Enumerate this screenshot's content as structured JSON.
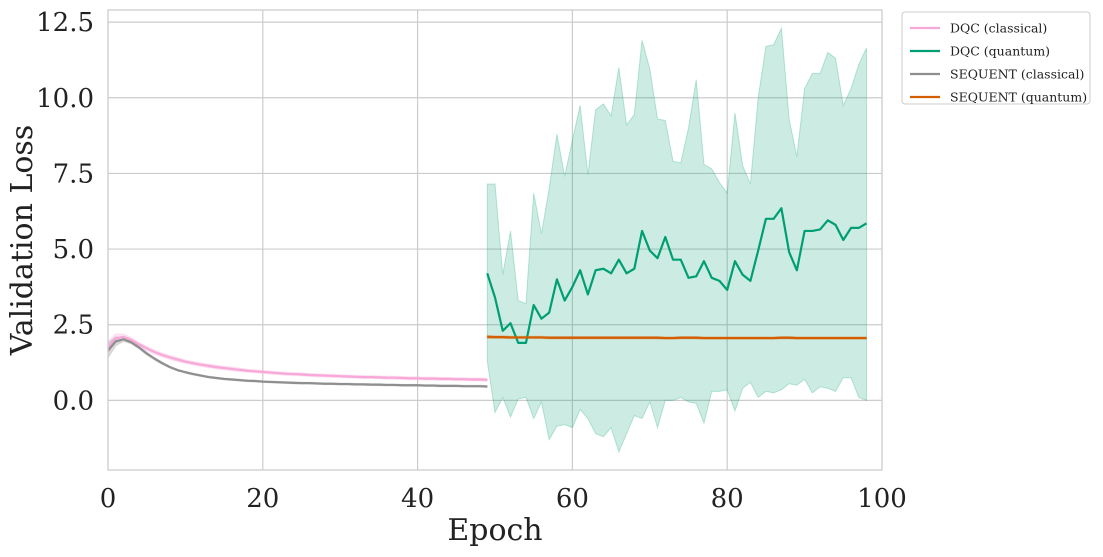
{
  "chart_data": {
    "type": "line",
    "xlabel": "Epoch",
    "ylabel": "Validation Loss",
    "xlim": [
      0,
      100
    ],
    "ylim": [
      -2.3,
      12.9
    ],
    "x_ticks": [
      0,
      20,
      40,
      60,
      80,
      100
    ],
    "x_tick_labels": [
      "0",
      "20",
      "40",
      "60",
      "80",
      "100"
    ],
    "y_ticks": [
      0.0,
      2.5,
      5.0,
      7.5,
      10.0,
      12.5
    ],
    "y_tick_labels": [
      "0.0",
      "2.5",
      "5.0",
      "7.5",
      "10.0",
      "12.5"
    ],
    "grid": true,
    "legend_position": "outside-top-right",
    "series": [
      {
        "name": "DQC (classical)",
        "color": "#f7a8d8",
        "x": [
          0,
          1,
          2,
          3,
          4,
          5,
          6,
          7,
          8,
          9,
          10,
          11,
          12,
          13,
          14,
          15,
          16,
          17,
          18,
          19,
          20,
          21,
          22,
          23,
          24,
          25,
          26,
          27,
          28,
          29,
          30,
          31,
          32,
          33,
          34,
          35,
          36,
          37,
          38,
          39,
          40,
          41,
          42,
          43,
          44,
          45,
          46,
          47,
          48,
          49
        ],
        "y": [
          1.75,
          2.05,
          2.1,
          2.0,
          1.85,
          1.72,
          1.6,
          1.5,
          1.42,
          1.35,
          1.28,
          1.23,
          1.18,
          1.14,
          1.1,
          1.07,
          1.04,
          1.01,
          0.98,
          0.96,
          0.94,
          0.92,
          0.9,
          0.88,
          0.87,
          0.86,
          0.84,
          0.83,
          0.82,
          0.81,
          0.8,
          0.79,
          0.78,
          0.77,
          0.77,
          0.76,
          0.75,
          0.75,
          0.74,
          0.73,
          0.73,
          0.72,
          0.72,
          0.71,
          0.71,
          0.7,
          0.7,
          0.69,
          0.69,
          0.68
        ],
        "band_lower": [
          1.55,
          1.9,
          2.0,
          1.92,
          1.78,
          1.65,
          1.53,
          1.43,
          1.35,
          1.28,
          1.22,
          1.17,
          1.12,
          1.08,
          1.04,
          1.01,
          0.98,
          0.95,
          0.93,
          0.91,
          0.89,
          0.87,
          0.85,
          0.83,
          0.82,
          0.81,
          0.79,
          0.78,
          0.77,
          0.76,
          0.75,
          0.74,
          0.73,
          0.72,
          0.72,
          0.71,
          0.7,
          0.7,
          0.69,
          0.68,
          0.68,
          0.67,
          0.67,
          0.66,
          0.66,
          0.65,
          0.65,
          0.64,
          0.64,
          0.63
        ],
        "band_upper": [
          1.95,
          2.2,
          2.2,
          2.08,
          1.92,
          1.79,
          1.67,
          1.57,
          1.49,
          1.42,
          1.34,
          1.29,
          1.24,
          1.2,
          1.16,
          1.13,
          1.1,
          1.07,
          1.03,
          1.01,
          0.99,
          0.97,
          0.95,
          0.93,
          0.92,
          0.91,
          0.89,
          0.88,
          0.87,
          0.86,
          0.85,
          0.84,
          0.83,
          0.82,
          0.82,
          0.81,
          0.8,
          0.8,
          0.79,
          0.78,
          0.78,
          0.77,
          0.77,
          0.76,
          0.76,
          0.75,
          0.75,
          0.74,
          0.74,
          0.73
        ]
      },
      {
        "name": "DQC (quantum)",
        "color": "#009e73",
        "x": [
          49,
          50,
          51,
          52,
          53,
          54,
          55,
          56,
          57,
          58,
          59,
          60,
          61,
          62,
          63,
          64,
          65,
          66,
          67,
          68,
          69,
          70,
          71,
          72,
          73,
          74,
          75,
          76,
          77,
          78,
          79,
          80,
          81,
          82,
          83,
          84,
          85,
          86,
          87,
          88,
          89,
          90,
          91,
          92,
          93,
          94,
          95,
          96,
          97,
          98
        ],
        "y": [
          4.2,
          3.4,
          2.3,
          2.55,
          1.9,
          1.9,
          3.15,
          2.7,
          2.9,
          4.0,
          3.3,
          3.75,
          4.3,
          3.5,
          4.3,
          4.35,
          4.2,
          4.65,
          4.2,
          4.35,
          5.6,
          4.95,
          4.7,
          5.4,
          4.65,
          4.65,
          4.05,
          4.1,
          4.6,
          4.05,
          3.95,
          3.65,
          4.6,
          4.15,
          3.95,
          4.95,
          6.0,
          6.0,
          6.35,
          4.9,
          4.3,
          5.6,
          5.6,
          5.65,
          5.95,
          5.8,
          5.3,
          5.7,
          5.7,
          5.85
        ],
        "band_lower": [
          1.3,
          -0.4,
          0.1,
          -0.55,
          0.05,
          0.1,
          -0.6,
          -0.05,
          -1.3,
          -0.85,
          -0.8,
          -0.9,
          -0.3,
          -0.6,
          -1.1,
          -1.2,
          -0.9,
          -1.7,
          -1.1,
          -0.5,
          -0.6,
          -0.05,
          -0.9,
          0.0,
          0.0,
          0.1,
          -0.05,
          -0.1,
          -0.75,
          0.3,
          0.3,
          0.35,
          -0.35,
          0.4,
          0.6,
          0.1,
          0.3,
          0.25,
          0.35,
          0.55,
          0.5,
          0.7,
          0.25,
          0.45,
          0.4,
          0.3,
          0.75,
          0.75,
          0.1,
          0.0
        ],
        "band_upper": [
          7.15,
          7.15,
          4.15,
          5.6,
          3.3,
          3.2,
          6.85,
          5.5,
          7.0,
          8.8,
          7.4,
          8.6,
          9.75,
          7.45,
          9.6,
          9.8,
          9.4,
          11.0,
          9.1,
          9.45,
          11.9,
          10.95,
          9.3,
          9.25,
          7.9,
          7.85,
          9.0,
          10.6,
          7.8,
          7.65,
          7.2,
          6.85,
          9.5,
          7.75,
          7.15,
          10.0,
          11.7,
          11.75,
          12.3,
          9.3,
          8.05,
          10.3,
          10.8,
          10.8,
          11.5,
          11.3,
          9.75,
          10.3,
          11.1,
          11.65
        ]
      },
      {
        "name": "SEQUENT (classical)",
        "color": "#8f8f8f",
        "x": [
          0,
          1,
          2,
          3,
          4,
          5,
          6,
          7,
          8,
          9,
          10,
          11,
          12,
          13,
          14,
          15,
          16,
          17,
          18,
          19,
          20,
          21,
          22,
          23,
          24,
          25,
          26,
          27,
          28,
          29,
          30,
          31,
          32,
          33,
          34,
          35,
          36,
          37,
          38,
          39,
          40,
          41,
          42,
          43,
          44,
          45,
          46,
          47,
          48,
          49
        ],
        "y": [
          1.65,
          1.95,
          2.02,
          1.92,
          1.75,
          1.55,
          1.38,
          1.23,
          1.1,
          1.0,
          0.93,
          0.87,
          0.82,
          0.77,
          0.74,
          0.71,
          0.69,
          0.67,
          0.65,
          0.64,
          0.62,
          0.61,
          0.6,
          0.59,
          0.58,
          0.57,
          0.57,
          0.56,
          0.55,
          0.55,
          0.54,
          0.54,
          0.53,
          0.53,
          0.52,
          0.52,
          0.51,
          0.51,
          0.5,
          0.5,
          0.5,
          0.49,
          0.49,
          0.48,
          0.48,
          0.48,
          0.47,
          0.47,
          0.47,
          0.46
        ],
        "band_lower": [
          1.4,
          1.8,
          1.95,
          1.87,
          1.7,
          1.5,
          1.34,
          1.19,
          1.07,
          0.97,
          0.9,
          0.84,
          0.79,
          0.74,
          0.71,
          0.68,
          0.66,
          0.64,
          0.62,
          0.61,
          0.59,
          0.58,
          0.57,
          0.56,
          0.55,
          0.54,
          0.54,
          0.53,
          0.52,
          0.52,
          0.51,
          0.51,
          0.5,
          0.5,
          0.49,
          0.49,
          0.48,
          0.48,
          0.47,
          0.47,
          0.47,
          0.46,
          0.46,
          0.45,
          0.45,
          0.45,
          0.44,
          0.44,
          0.44,
          0.43
        ],
        "band_upper": [
          1.9,
          2.1,
          2.09,
          1.97,
          1.8,
          1.6,
          1.42,
          1.27,
          1.13,
          1.03,
          0.96,
          0.9,
          0.85,
          0.8,
          0.77,
          0.74,
          0.72,
          0.7,
          0.68,
          0.67,
          0.65,
          0.64,
          0.63,
          0.62,
          0.61,
          0.6,
          0.6,
          0.59,
          0.58,
          0.58,
          0.57,
          0.57,
          0.56,
          0.56,
          0.55,
          0.55,
          0.54,
          0.54,
          0.53,
          0.53,
          0.53,
          0.52,
          0.52,
          0.51,
          0.51,
          0.51,
          0.5,
          0.5,
          0.5,
          0.49
        ]
      },
      {
        "name": "SEQUENT (quantum)",
        "color": "#d55e00",
        "x": [
          49,
          50,
          51,
          52,
          53,
          54,
          55,
          56,
          57,
          58,
          59,
          60,
          61,
          62,
          63,
          64,
          65,
          66,
          67,
          68,
          69,
          70,
          71,
          72,
          73,
          74,
          75,
          76,
          77,
          78,
          79,
          80,
          81,
          82,
          83,
          84,
          85,
          86,
          87,
          88,
          89,
          90,
          91,
          92,
          93,
          94,
          95,
          96,
          97,
          98
        ],
        "y": [
          2.1,
          2.09,
          2.09,
          2.08,
          2.08,
          2.08,
          2.08,
          2.08,
          2.07,
          2.07,
          2.07,
          2.07,
          2.07,
          2.07,
          2.07,
          2.07,
          2.07,
          2.07,
          2.07,
          2.07,
          2.07,
          2.07,
          2.07,
          2.06,
          2.06,
          2.07,
          2.07,
          2.07,
          2.06,
          2.06,
          2.06,
          2.06,
          2.06,
          2.06,
          2.06,
          2.06,
          2.06,
          2.06,
          2.07,
          2.07,
          2.06,
          2.06,
          2.06,
          2.06,
          2.06,
          2.06,
          2.06,
          2.06,
          2.06,
          2.06
        ],
        "band_lower": [
          2.05,
          2.05,
          2.05,
          2.04,
          2.04,
          2.04,
          2.04,
          2.04,
          2.03,
          2.03,
          2.03,
          2.03,
          2.03,
          2.03,
          2.03,
          2.03,
          2.03,
          2.03,
          2.03,
          2.03,
          2.03,
          2.03,
          2.03,
          2.02,
          2.02,
          2.03,
          2.03,
          2.03,
          2.02,
          2.02,
          2.02,
          2.02,
          2.02,
          2.02,
          2.02,
          2.02,
          2.02,
          2.02,
          2.03,
          2.03,
          2.02,
          2.02,
          2.02,
          2.02,
          2.02,
          2.02,
          2.02,
          2.02,
          2.02,
          2.02
        ],
        "band_upper": [
          2.15,
          2.13,
          2.13,
          2.12,
          2.12,
          2.12,
          2.12,
          2.12,
          2.11,
          2.11,
          2.11,
          2.11,
          2.11,
          2.11,
          2.11,
          2.11,
          2.11,
          2.11,
          2.11,
          2.11,
          2.11,
          2.11,
          2.11,
          2.1,
          2.1,
          2.11,
          2.11,
          2.11,
          2.1,
          2.1,
          2.1,
          2.1,
          2.1,
          2.1,
          2.1,
          2.1,
          2.1,
          2.1,
          2.11,
          2.11,
          2.1,
          2.1,
          2.1,
          2.1,
          2.1,
          2.1,
          2.1,
          2.1,
          2.1,
          2.1
        ]
      }
    ]
  }
}
